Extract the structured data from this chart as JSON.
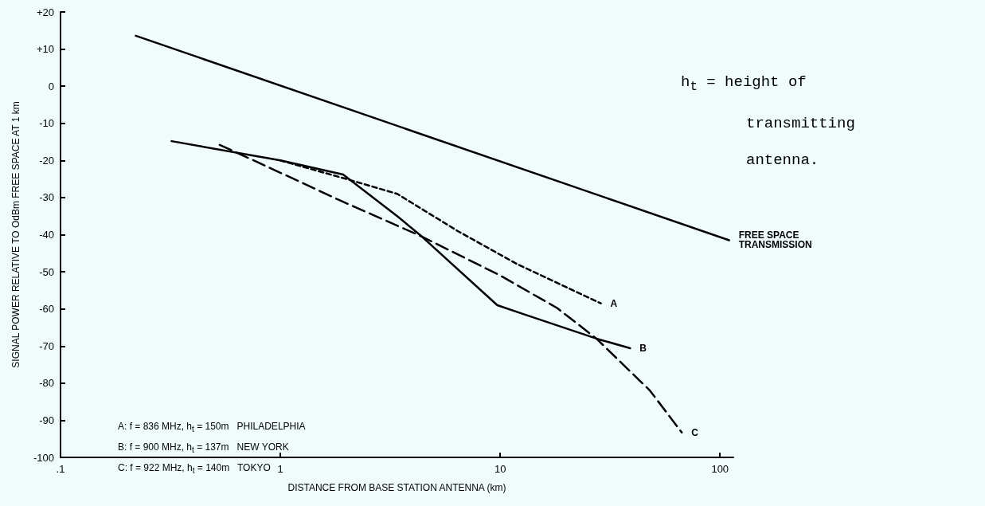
{
  "chart_data": {
    "type": "line",
    "xlabel": "DISTANCE FROM BASE STATION ANTENNA (km)",
    "ylabel": "SIGNAL POWER RELATIVE TO OdBm FREE SPACE AT 1 km",
    "log": "x",
    "xlim": [
      0.1,
      115
    ],
    "xticks": [
      {
        "value": 0.1,
        "label": ".1"
      },
      1,
      10,
      100
    ],
    "ylim": [
      -100,
      20
    ],
    "yticks": [
      -100,
      -90,
      -80,
      -70,
      -60,
      -50,
      -40,
      -30,
      -20,
      -10,
      0,
      {
        "value": 10,
        "label": "+10"
      },
      {
        "value": 20,
        "label": "+20"
      }
    ],
    "grid": false,
    "legend": false,
    "marker": "none",
    "series": [
      {
        "name": "FREE SPACE TRANSMISSION",
        "color": "#000000",
        "line_style": "solid",
        "x": [
          0.22,
          110
        ],
        "values": [
          13.6,
          -41.5
        ]
      },
      {
        "name": "A",
        "color": "#000000",
        "line_style": "dotted",
        "x": [
          1,
          2,
          3.4,
          6.4,
          12,
          28.7
        ],
        "values": [
          -20,
          -25,
          -29,
          -39,
          -48,
          -58.5
        ]
      },
      {
        "name": "B",
        "color": "#000000",
        "line_style": "solid",
        "x": [
          0.32,
          1,
          1.93,
          3.4,
          4.4,
          9.7,
          12.9,
          27.4,
          39
        ],
        "values": [
          -14.8,
          -20,
          -23.8,
          -35,
          -40.5,
          -59,
          -61.5,
          -68,
          -70.6
        ]
      },
      {
        "name": "C",
        "color": "#000000",
        "line_style": "dashed",
        "x": [
          0.53,
          1.32,
          1.84,
          4.4,
          10,
          18.2,
          27.4,
          48,
          67
        ],
        "values": [
          -15.8,
          -26.6,
          -30.6,
          -40.5,
          -51,
          -59.8,
          -68,
          -82,
          -93.3
        ]
      }
    ],
    "annotations": [
      "A: f = 836 MHz, h$_{t}$ = 150m   PHILADELPHIA",
      "B: f = 900 MHz, h$_{t}$ = 137m   NEW YORK",
      "C: f = 922 MHz, h$_{t}$ = 140m   TOKYO",
      "h$_{t}$ = height of transmitting antenna."
    ]
  }
}
